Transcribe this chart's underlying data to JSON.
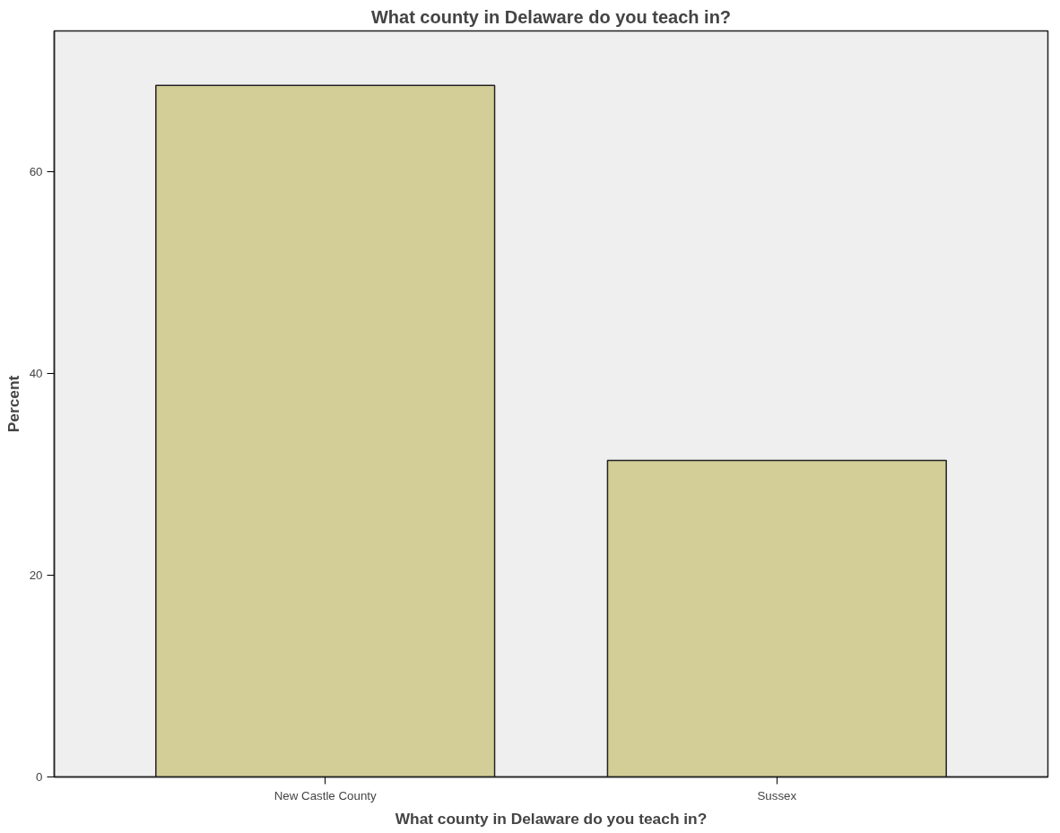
{
  "chart_data": {
    "type": "bar",
    "title": "What county in Delaware do you teach in?",
    "xlabel": "What county in Delaware do you teach in?",
    "ylabel": "Percent",
    "categories": [
      "New Castle County",
      "Sussex"
    ],
    "values": [
      68.6,
      31.4
    ],
    "color": "#d3ce97",
    "ylim": [
      0,
      74
    ],
    "yticks": [
      0,
      20,
      40,
      60
    ],
    "grid": false
  }
}
